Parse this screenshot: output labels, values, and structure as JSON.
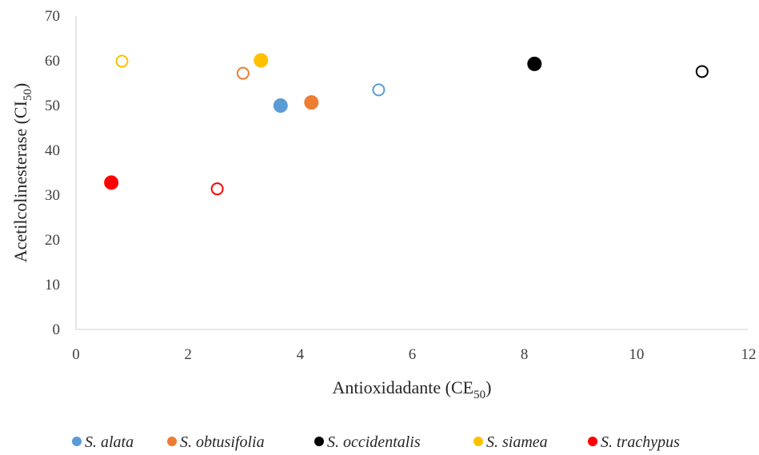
{
  "chart_data": {
    "type": "scatter",
    "xlabel": {
      "main": "Antioxidadante (CE",
      "sub": "50",
      "end": ")"
    },
    "ylabel": {
      "main": "Acetilcolinesterase (CI",
      "sub": "50",
      "end": ")"
    },
    "xlim": [
      0,
      12
    ],
    "ylim": [
      0,
      70
    ],
    "xticks": [
      0,
      2,
      4,
      6,
      8,
      10,
      12
    ],
    "yticks": [
      0,
      10,
      20,
      30,
      40,
      50,
      60,
      70
    ],
    "grid": false,
    "legend_position": "bottom",
    "series": [
      {
        "name": "S. alata",
        "color": "#5B9BD5",
        "points": [
          {
            "x": 3.65,
            "y": 50.0,
            "filled": true
          },
          {
            "x": 5.4,
            "y": 53.5,
            "filled": false
          }
        ]
      },
      {
        "name": "S. obtusifolia",
        "color": "#ED7D31",
        "points": [
          {
            "x": 4.2,
            "y": 50.7,
            "filled": true
          },
          {
            "x": 2.98,
            "y": 57.2,
            "filled": false
          }
        ]
      },
      {
        "name": "S. occidentalis",
        "color": "#000000",
        "points": [
          {
            "x": 8.18,
            "y": 59.3,
            "filled": true
          },
          {
            "x": 11.17,
            "y": 57.6,
            "filled": false
          }
        ]
      },
      {
        "name": "S. siamea",
        "color": "#FFC000",
        "points": [
          {
            "x": 3.3,
            "y": 60.1,
            "filled": true
          },
          {
            "x": 0.82,
            "y": 59.9,
            "filled": false
          }
        ]
      },
      {
        "name": "S. trachypus",
        "color": "#FF0000",
        "points": [
          {
            "x": 0.63,
            "y": 32.8,
            "filled": true
          },
          {
            "x": 2.52,
            "y": 31.4,
            "filled": false
          }
        ]
      }
    ]
  }
}
